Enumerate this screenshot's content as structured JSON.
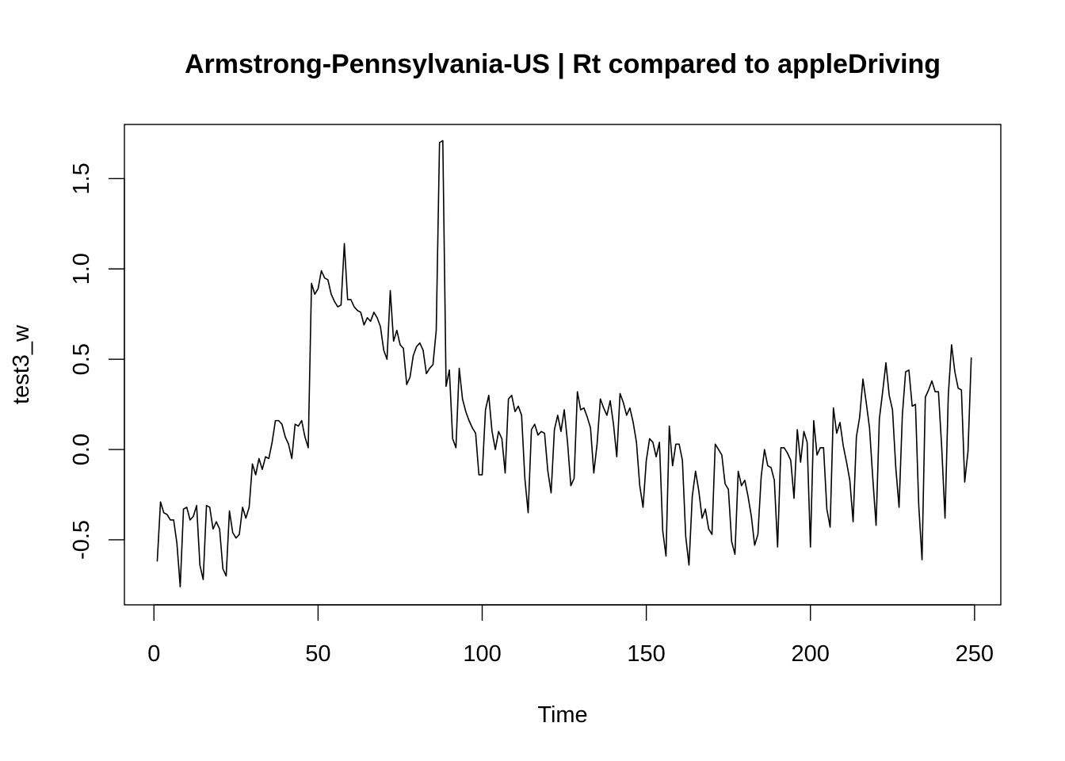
{
  "chart_data": {
    "type": "line",
    "title": "Armstrong-Pennsylvania-US | Rt compared to appleDriving",
    "xlabel": "Time",
    "ylabel": "test3_w",
    "xlim": [
      -9,
      258
    ],
    "ylim": [
      -0.86,
      1.8
    ],
    "xticks": [
      0,
      50,
      100,
      150,
      200,
      250
    ],
    "yticks": [
      -0.5,
      0.0,
      0.5,
      1.0,
      1.5
    ],
    "xtick_labels": [
      "0",
      "50",
      "100",
      "150",
      "200",
      "250"
    ],
    "ytick_labels": [
      "-0.5",
      "0.0",
      "0.5",
      "1.0",
      "1.5"
    ],
    "x_start": 1,
    "values": [
      -0.62,
      -0.29,
      -0.35,
      -0.36,
      -0.39,
      -0.39,
      -0.52,
      -0.76,
      -0.33,
      -0.32,
      -0.39,
      -0.37,
      -0.31,
      -0.64,
      -0.72,
      -0.31,
      -0.32,
      -0.44,
      -0.4,
      -0.44,
      -0.66,
      -0.7,
      -0.34,
      -0.46,
      -0.49,
      -0.47,
      -0.32,
      -0.38,
      -0.32,
      -0.08,
      -0.14,
      -0.05,
      -0.11,
      -0.04,
      -0.05,
      0.04,
      0.16,
      0.16,
      0.14,
      0.07,
      0.03,
      -0.05,
      0.14,
      0.13,
      0.16,
      0.07,
      0.01,
      0.92,
      0.86,
      0.89,
      0.99,
      0.95,
      0.94,
      0.86,
      0.82,
      0.79,
      0.8,
      1.14,
      0.83,
      0.83,
      0.79,
      0.77,
      0.76,
      0.69,
      0.73,
      0.71,
      0.76,
      0.73,
      0.68,
      0.55,
      0.5,
      0.88,
      0.6,
      0.66,
      0.58,
      0.56,
      0.36,
      0.4,
      0.52,
      0.57,
      0.59,
      0.55,
      0.42,
      0.45,
      0.47,
      0.66,
      1.7,
      1.71,
      0.35,
      0.44,
      0.06,
      0.01,
      0.45,
      0.28,
      0.21,
      0.16,
      0.12,
      0.09,
      -0.14,
      -0.14,
      0.22,
      0.3,
      0.1,
      0.0,
      0.1,
      0.06,
      -0.13,
      0.28,
      0.3,
      0.21,
      0.24,
      0.19,
      -0.16,
      -0.35,
      0.11,
      0.14,
      0.08,
      0.1,
      0.09,
      -0.12,
      -0.24,
      0.11,
      0.19,
      0.1,
      0.22,
      0.04,
      -0.2,
      -0.16,
      0.32,
      0.22,
      0.23,
      0.18,
      0.12,
      -0.13,
      0.03,
      0.28,
      0.23,
      0.19,
      0.27,
      0.14,
      -0.04,
      0.31,
      0.26,
      0.19,
      0.23,
      0.15,
      0.04,
      -0.2,
      -0.32,
      -0.06,
      0.06,
      0.04,
      -0.04,
      0.04,
      -0.45,
      -0.59,
      0.13,
      -0.09,
      0.03,
      0.03,
      -0.06,
      -0.48,
      -0.64,
      -0.26,
      -0.12,
      -0.23,
      -0.38,
      -0.33,
      -0.44,
      -0.47,
      0.03,
      -0.0,
      -0.03,
      -0.19,
      -0.22,
      -0.51,
      -0.58,
      -0.12,
      -0.2,
      -0.17,
      -0.26,
      -0.37,
      -0.53,
      -0.47,
      -0.15,
      -0.0,
      -0.09,
      -0.1,
      -0.17,
      -0.54,
      0.01,
      0.01,
      -0.02,
      -0.06,
      -0.27,
      0.11,
      -0.07,
      0.1,
      0.04,
      -0.54,
      0.16,
      -0.03,
      0.01,
      0.01,
      -0.33,
      -0.43,
      0.23,
      0.09,
      0.15,
      0.02,
      -0.07,
      -0.17,
      -0.4,
      0.07,
      0.18,
      0.39,
      0.26,
      0.12,
      -0.16,
      -0.42,
      0.17,
      0.32,
      0.48,
      0.3,
      0.22,
      -0.1,
      -0.32,
      0.19,
      0.43,
      0.44,
      0.24,
      0.25,
      -0.31,
      -0.61,
      0.29,
      0.33,
      0.38,
      0.32,
      0.32,
      0.01,
      -0.38,
      0.3,
      0.58,
      0.43,
      0.34,
      0.33,
      -0.18,
      -0.01,
      0.51
    ]
  }
}
